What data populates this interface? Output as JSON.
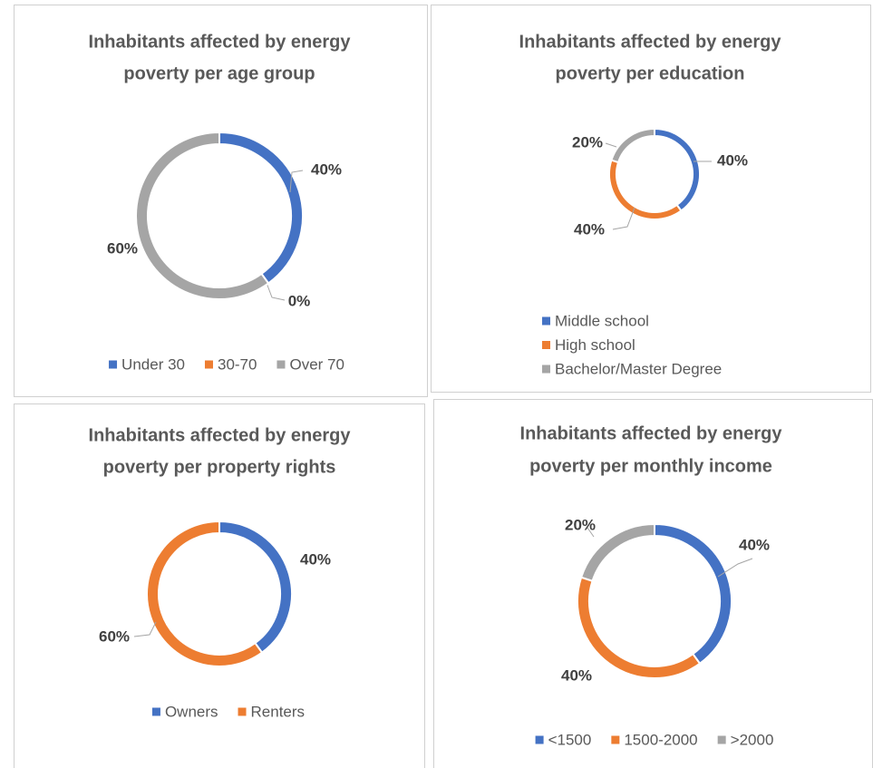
{
  "chart_data": [
    {
      "type": "doughnut",
      "title": [
        "Inhabitants affected by energy",
        "poverty per age group"
      ],
      "categories": [
        "Under 30",
        "30-70",
        "Over 70"
      ],
      "values": [
        40,
        0,
        60
      ],
      "value_labels": [
        "40%",
        "0%",
        "60%"
      ],
      "colors": [
        "#4472c4",
        "#ed7d31",
        "#a5a5a5"
      ],
      "legend": "bottom"
    },
    {
      "type": "doughnut",
      "title": [
        "Inhabitants affected by energy",
        "poverty per education"
      ],
      "categories": [
        "Middle school",
        "High school",
        "Bachelor/Master Degree"
      ],
      "values": [
        40,
        40,
        20
      ],
      "value_labels": [
        "40%",
        "40%",
        "20%"
      ],
      "colors": [
        "#4472c4",
        "#ed7d31",
        "#a5a5a5"
      ],
      "legend": "bottom"
    },
    {
      "type": "doughnut",
      "title": [
        "Inhabitants affected by energy",
        "poverty per property rights"
      ],
      "categories": [
        "Owners",
        "Renters"
      ],
      "values": [
        40,
        60
      ],
      "value_labels": [
        "40%",
        "60%"
      ],
      "colors": [
        "#4472c4",
        "#ed7d31"
      ],
      "legend": "bottom"
    },
    {
      "type": "doughnut",
      "title": [
        "Inhabitants affected by energy",
        "poverty per monthly income"
      ],
      "categories": [
        "<1500",
        "1500-2000",
        ">2000"
      ],
      "values": [
        40,
        40,
        20
      ],
      "value_labels": [
        "40%",
        "40%",
        "20%"
      ],
      "colors": [
        "#4472c4",
        "#ed7d31",
        "#a5a5a5"
      ],
      "legend": "bottom"
    }
  ]
}
